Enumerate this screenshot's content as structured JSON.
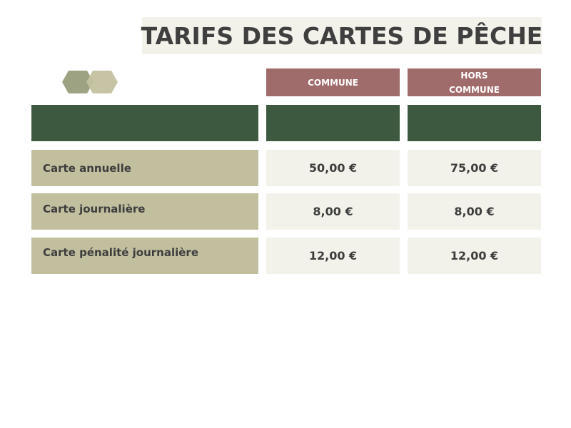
{
  "title": "TARIFS DES CARTES DE PÊCHE",
  "headers": {
    "commune": "COMMUNE",
    "hors_commune_line1": "HORS",
    "hors_commune_line2": "COMMUNE"
  },
  "rows": [
    {
      "label": "Carte annuelle",
      "commune": "50,00 €",
      "hors_commune": "75,00 €"
    },
    {
      "label": "Carte journalière",
      "commune": "8,00 €",
      "hors_commune": "8,00 €"
    },
    {
      "label": "Carte pénalité journalière",
      "commune": "12,00 €",
      "hors_commune": "12,00 €"
    }
  ],
  "decoration": {
    "icon": "hexagon-pair-icon",
    "hex_colors": [
      "#9da283",
      "#c4c1a0"
    ]
  },
  "colors": {
    "header_bg": "#a06b6b",
    "band_green": "#3d5a40",
    "label_bg": "#c2bf9f",
    "value_bg": "#f3f2ea",
    "title_bg": "#f3f2ea"
  }
}
